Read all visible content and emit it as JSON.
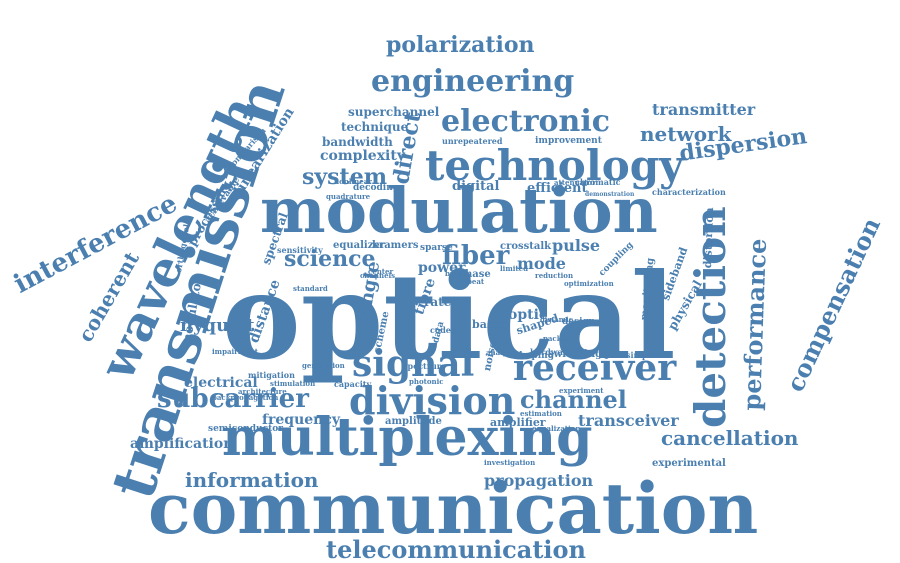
{
  "colors": {
    "word": "#4a7fb0",
    "background": "#ffffff"
  },
  "words": [
    "optical",
    "communication",
    "modulation",
    "multiplexing",
    "transmission",
    "wavelength",
    "detection",
    "technology",
    "receiver",
    "division",
    "signal",
    "engineering",
    "electronic",
    "polarization",
    "interference",
    "compensation",
    "performance",
    "telecommunication",
    "fiber",
    "science",
    "subcarrier",
    "channel",
    "network",
    "dispersion",
    "transmitter",
    "cancellation",
    "information",
    "system",
    "coherent",
    "nyquist",
    "transceiver",
    "propagation",
    "amplification",
    "electrical",
    "frequency",
    "direct",
    "single",
    "complexity",
    "bandwidth",
    "superchannel",
    "technique",
    "efficient",
    "digital",
    "mode",
    "pulse",
    "power",
    "phase",
    "tibre",
    "rate",
    "optic",
    "distance",
    "spectral",
    "linearization",
    "processing",
    "comparison",
    "modulator",
    "equalizer",
    "sparse",
    "crosstalk",
    "experimental",
    "characterization",
    "distortion",
    "physical",
    "sideband",
    "amplitude",
    "amplifier",
    "semiconductor",
    "capacity",
    "improvement",
    "unrepeatered",
    "monitoring",
    "simplified",
    "based",
    "shaped",
    "switching",
    "shaping",
    "hardware",
    "decoding",
    "kramers",
    "sensitivity",
    "achievable",
    "orthogonal",
    "mitigation",
    "architecture",
    "attenuator",
    "chromatic",
    "demonstration",
    "spectrum",
    "investigation",
    "estimation",
    "experiment",
    "coupling",
    "design",
    "scheme",
    "noise",
    "data",
    "coded",
    "burst",
    "beat",
    "backpropagation",
    "impairment",
    "standard",
    "center",
    "generation",
    "stimulation",
    "nonlinear",
    "quadrature",
    "packet",
    "photonic",
    "optimization",
    "equalization",
    "dynamic",
    "analysis",
    "limited",
    "reduction",
    "channels"
  ]
}
